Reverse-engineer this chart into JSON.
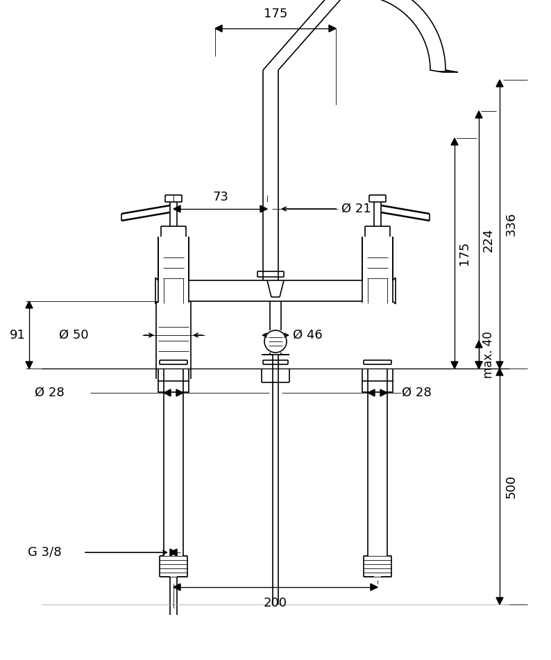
{
  "fig_width": 7.94,
  "fig_height": 9.51,
  "dpi": 100,
  "bg_color": "#ffffff",
  "line_color": "#000000",
  "line_width": 1.2,
  "thin_line": 0.6,
  "annotation_fontsize": 13,
  "label_color": "#000000",
  "dimensions": {
    "top_width": "175",
    "left_offset": "73",
    "spout_dia": "Ø 21",
    "valve_dia_50": "Ø 50",
    "valve_dia_46": "Ø 46",
    "stem_dia_28_left": "Ø 28",
    "stem_dia_28_right": "Ø 28",
    "height_91": "91",
    "height_175": "175",
    "height_224": "224",
    "height_336": "336",
    "height_500": "500",
    "height_max40": "max. 40",
    "bottom_width": "200",
    "thread": "G 3/8"
  }
}
